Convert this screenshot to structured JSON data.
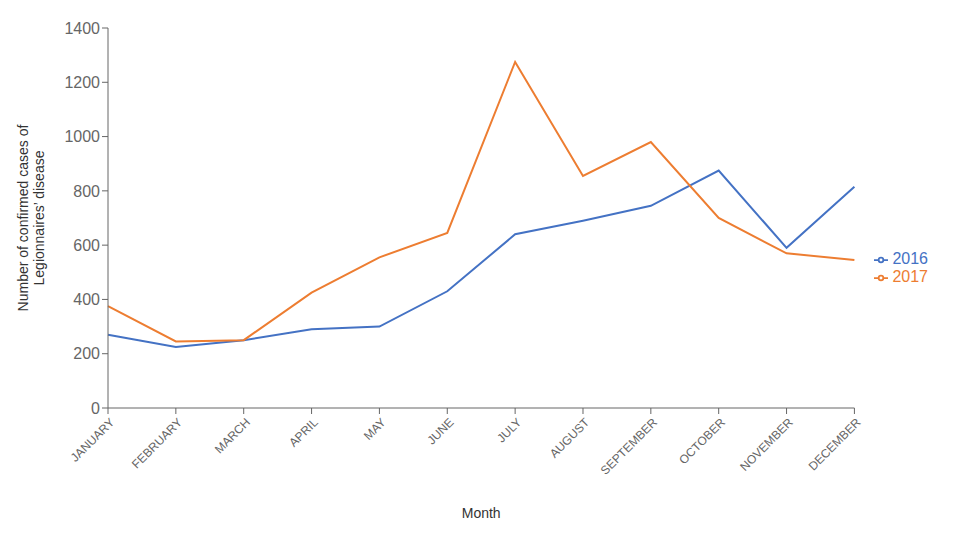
{
  "chart_data": {
    "type": "line",
    "categories": [
      "JANUARY",
      "FEBRUARY",
      "MARCH",
      "APRIL",
      "MAY",
      "JUNE",
      "JULY",
      "AUGUST",
      "SEPTEMBER",
      "OCTOBER",
      "NOVEMBER",
      "DECEMBER"
    ],
    "series": [
      {
        "name": "2016",
        "color": "#4472c4",
        "values": [
          270,
          225,
          250,
          290,
          300,
          430,
          640,
          690,
          745,
          875,
          590,
          815
        ]
      },
      {
        "name": "2017",
        "color": "#ed7d31",
        "values": [
          375,
          245,
          250,
          425,
          555,
          645,
          1275,
          855,
          980,
          700,
          570,
          545
        ]
      }
    ],
    "xlabel": "Month",
    "ylabel": "Number of confirmed cases of\nLegionnaires’ disease",
    "ylim": [
      0,
      1400
    ],
    "yticks": [
      0,
      200,
      400,
      600,
      800,
      1000,
      1200,
      1400
    ],
    "grid": false,
    "legend": "right"
  }
}
